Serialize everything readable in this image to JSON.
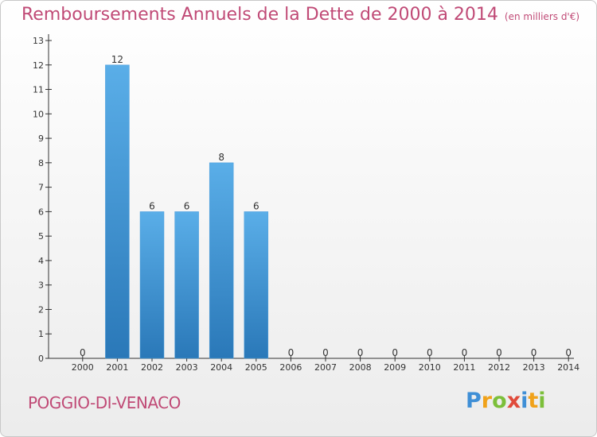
{
  "title": "Remboursements Annuels de la Dette de 2000 à 2014",
  "unit_label": "(en milliers d'€)",
  "commune": "POGGIO-DI-VENACO",
  "logo": {
    "text": "Proxiti",
    "letters": [
      {
        "ch": "P",
        "color": "#3f8fd6"
      },
      {
        "ch": "r",
        "color": "#f0a21a"
      },
      {
        "ch": "o",
        "color": "#7cbf3a"
      },
      {
        "ch": "x",
        "color": "#e04a3a"
      },
      {
        "ch": "i",
        "color": "#3f8fd6"
      },
      {
        "ch": "t",
        "color": "#f0a21a"
      },
      {
        "ch": "i",
        "color": "#7cbf3a"
      }
    ]
  },
  "colors": {
    "accent": "#c04a76",
    "bar_top": "#5aaee8",
    "bar_bottom": "#2a78b8",
    "axis": "#333333",
    "grid": "#bfbfbf"
  },
  "chart_data": {
    "type": "bar",
    "categories": [
      "2000",
      "2001",
      "2002",
      "2003",
      "2004",
      "2005",
      "2006",
      "2007",
      "2008",
      "2009",
      "2010",
      "2011",
      "2012",
      "2013",
      "2014"
    ],
    "values": [
      0,
      12,
      6,
      6,
      8,
      6,
      0,
      0,
      0,
      0,
      0,
      0,
      0,
      0,
      0
    ],
    "ylim": [
      0,
      13
    ],
    "yticks": [
      0,
      1,
      2,
      3,
      4,
      5,
      6,
      7,
      8,
      9,
      10,
      11,
      12,
      13
    ],
    "grid": false,
    "data_labels": true
  }
}
